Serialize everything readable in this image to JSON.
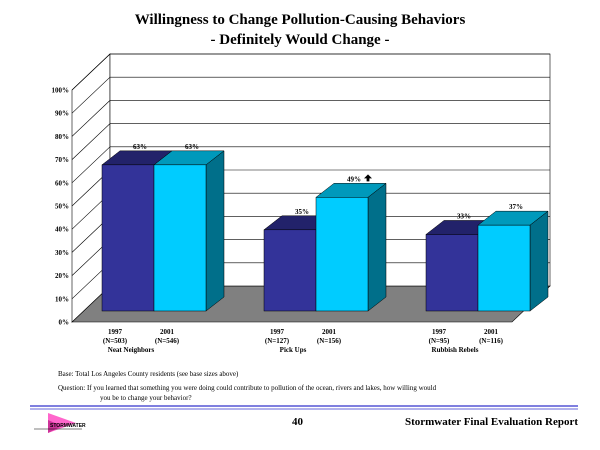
{
  "chart_data": {
    "type": "bar",
    "title": "Willingness to Change Pollution-Causing Behaviors",
    "subtitle": "- Definitely Would Change -",
    "ylim": [
      0,
      100
    ],
    "yticks": [
      "0%",
      "10%",
      "20%",
      "30%",
      "40%",
      "50%",
      "60%",
      "70%",
      "80%",
      "90%",
      "100%"
    ],
    "grid": true,
    "groups": [
      {
        "name": "Neat Neighbors",
        "bars": [
          {
            "year": "1997",
            "n": "(N=503)",
            "value": 63,
            "label": "63%",
            "arrow": false
          },
          {
            "year": "2001",
            "n": "(N=546)",
            "value": 63,
            "label": "63%",
            "arrow": false
          }
        ]
      },
      {
        "name": "Pick Ups",
        "bars": [
          {
            "year": "1997",
            "n": "(N=127)",
            "value": 35,
            "label": "35%",
            "arrow": false
          },
          {
            "year": "2001",
            "n": "(N=156)",
            "value": 49,
            "label": "49%",
            "arrow": true
          }
        ]
      },
      {
        "name": "Rubbish Rebels",
        "bars": [
          {
            "year": "1997",
            "n": "(N=95)",
            "value": 33,
            "label": "33%",
            "arrow": false
          },
          {
            "year": "2001",
            "n": "(N=116)",
            "value": 37,
            "label": "37%",
            "arrow": false
          }
        ]
      }
    ],
    "colors": {
      "bar1997_front": "#333399",
      "bar1997_top": "#22226a",
      "bar1997_side": "#1d1d5c",
      "bar2001_front": "#00ccff",
      "bar2001_top": "#0099bb",
      "bar2001_side": "#006f8a",
      "floor": "#808080",
      "grid": "#000000"
    }
  },
  "footer": {
    "base": "Base: Total Los Angeles County residents (see base sizes above)",
    "question_line1": "Question: If you learned that something you were doing could contribute to pollution of the ocean, rivers and lakes, how willing would",
    "question_line2": "you be to change your behavior?",
    "page_number": "40",
    "report_title": "Stormwater Final Evaluation Report",
    "logo_text": "STORMWATER"
  }
}
